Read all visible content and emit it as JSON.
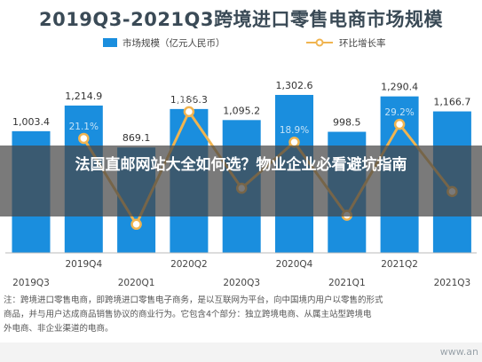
{
  "title": "2019Q3-2021Q3跨境进口零售电商市场规模",
  "legend": {
    "bar_label": "市场规模（亿元人民币）",
    "line_label": "环比增长率"
  },
  "colors": {
    "bar": "#1a8ede",
    "line": "#f0b450",
    "text": "#3a4a56"
  },
  "banner": {
    "text": "法国直邮网站大全如何选？物业企业必看避坑指南"
  },
  "note": {
    "line1": "注：跨境进口零售电商，即跨境进口零售电子商务，是以互联网为平台，向中国境内用户以零售的形式",
    "line2": "商品，并与用户达成商品销售协议的商业行为。它包含4个部分：独立跨境电商、从属主站型跨境电",
    "line3": "外电商、非企业渠道的电商。"
  },
  "watermark": "www.an",
  "chart_data": {
    "type": "bar",
    "title": "2019Q3-2021Q3跨境进口零售电商市场规模",
    "categories": [
      "2019Q3",
      "2019Q4",
      "2020Q1",
      "2020Q2",
      "2020Q3",
      "2020Q4",
      "2021Q1",
      "2021Q2",
      "2021Q3"
    ],
    "series": [
      {
        "name": "市场规模（亿元人民币）",
        "type": "bar",
        "values": [
          1003.4,
          1214.9,
          869.1,
          1186.3,
          1095.2,
          1302.6,
          998.5,
          1290.4,
          1166.7
        ],
        "labels": [
          "1,003.4",
          "1,214.9",
          "869.1",
          "1,186.3",
          "1,095.2",
          "1,302.6",
          "998.5",
          "1,290.4",
          "1,166.7"
        ]
      },
      {
        "name": "环比增长率",
        "type": "line",
        "values": [
          null,
          21.1,
          -28.5,
          36.5,
          -7.7,
          18.9,
          -23.3,
          29.2,
          -9.6
        ],
        "labels": [
          "",
          "21.1%",
          "",
          "36.5%",
          "",
          "18.9%",
          "",
          "29.2%",
          ""
        ]
      }
    ],
    "ylim_bar": [
      0,
      1500
    ],
    "ylim_line": [
      -45,
      60
    ],
    "legend_position": "top"
  }
}
